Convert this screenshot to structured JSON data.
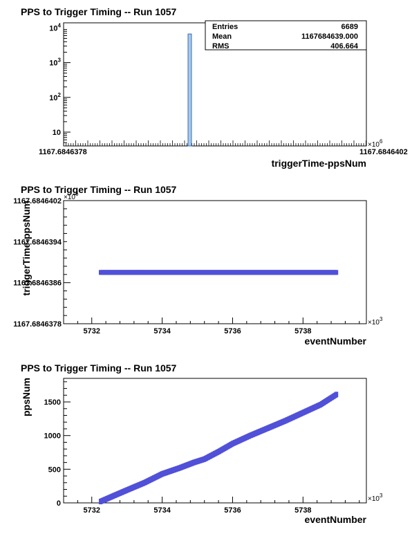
{
  "chart_data": [
    {
      "type": "bar",
      "title": "PPS to Trigger Timing -- Run 1057",
      "xlabel": "triggerTime-ppsNum",
      "ylabel": "",
      "y_scale": "log",
      "ylim": [
        4,
        14000
      ],
      "y_ticks": [
        {
          "value": 10,
          "base": "10",
          "exp": ""
        },
        {
          "value": 100,
          "base": "10",
          "exp": "2"
        },
        {
          "value": 1000,
          "base": "10",
          "exp": "3"
        },
        {
          "value": 10000,
          "base": "10",
          "exp": "4"
        }
      ],
      "x_multiplier": {
        "base": "×10",
        "exp": "6"
      },
      "x_tick_left_label": "1167.6846378",
      "x_tick_right_label": "1167.6846402",
      "bins": [
        {
          "x": 1167.6846388,
          "value": 6689
        }
      ],
      "stats": {
        "rows": [
          {
            "label": "Entries",
            "value": "6689"
          },
          {
            "label": "Mean",
            "value": "1167684639.000"
          },
          {
            "label": "RMS",
            "value": "406.664"
          }
        ]
      },
      "colors": {
        "fill": "#a8c8ec",
        "edge": "#3a6fb0",
        "frame": "#000000"
      }
    },
    {
      "type": "scatter",
      "title": "PPS to Trigger Timing -- Run 1057",
      "xlabel": "eventNumber",
      "ylabel": "triggerTime-ppsNum",
      "xlim": [
        5731.2,
        5739.8
      ],
      "ylim": [
        1167.6846378,
        1167.6846402
      ],
      "x_ticks": [
        "5732",
        "5734",
        "5736",
        "5738"
      ],
      "x_tick_values": [
        5732,
        5734,
        5736,
        5738
      ],
      "y_ticks": [
        "1167.6846378",
        "1167.6846386",
        "1167.6846394",
        "1167.6846402"
      ],
      "y_tick_values": [
        1167.6846378,
        1167.6846386,
        1167.6846394,
        1167.6846402
      ],
      "x_multiplier": {
        "base": "×10",
        "exp": "3"
      },
      "y_multiplier": {
        "base": "×10",
        "exp": "6"
      },
      "x": [
        5732.25,
        5738.95
      ],
      "y": [
        1167.6846388,
        1167.6846388
      ],
      "colors": {
        "marker": "#5050d8",
        "frame": "#000000"
      }
    },
    {
      "type": "scatter",
      "title": "PPS to Trigger Timing -- Run 1057",
      "xlabel": "eventNumber",
      "ylabel": "ppsNum",
      "xlim": [
        5731.2,
        5739.8
      ],
      "ylim": [
        0,
        1850
      ],
      "x_ticks": [
        "5732",
        "5734",
        "5736",
        "5738"
      ],
      "x_tick_values": [
        5732,
        5734,
        5736,
        5738
      ],
      "y_ticks": [
        "0",
        "500",
        "1000",
        "1500"
      ],
      "y_tick_values": [
        0,
        500,
        1000,
        1500
      ],
      "x_multiplier": {
        "base": "×10",
        "exp": "3"
      },
      "x": [
        5732.25,
        5732.6,
        5733.0,
        5733.5,
        5734.0,
        5734.5,
        5734.9,
        5735.2,
        5735.6,
        5736.0,
        5736.5,
        5737.0,
        5737.5,
        5738.0,
        5738.5,
        5738.95
      ],
      "y": [
        20,
        100,
        190,
        300,
        430,
        520,
        600,
        650,
        760,
        880,
        1000,
        1110,
        1220,
        1340,
        1460,
        1610
      ],
      "colors": {
        "marker": "#5050d8",
        "frame": "#000000"
      }
    }
  ]
}
